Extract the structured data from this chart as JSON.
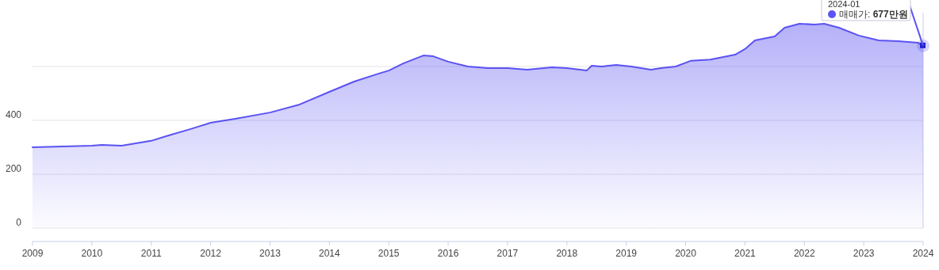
{
  "chart_data": {
    "type": "area",
    "x": [
      "2009-01",
      "2009-07",
      "2010-01",
      "2010-03",
      "2010-07",
      "2011-01",
      "2011-04",
      "2011-09",
      "2012-01",
      "2012-06",
      "2013-01",
      "2013-07",
      "2014-01",
      "2014-06",
      "2014-11",
      "2015-01",
      "2015-04",
      "2015-08",
      "2015-10",
      "2016-01",
      "2016-05",
      "2016-09",
      "2017-01",
      "2017-05",
      "2017-10",
      "2018-01",
      "2018-05",
      "2018-06",
      "2018-08",
      "2018-11",
      "2019-02",
      "2019-06",
      "2019-08",
      "2019-11",
      "2020-02",
      "2020-06",
      "2020-11",
      "2021-01",
      "2021-03",
      "2021-07",
      "2021-09",
      "2021-12",
      "2022-03",
      "2022-05",
      "2022-08",
      "2022-12",
      "2023-04",
      "2023-08",
      "2023-12",
      "2024-01"
    ],
    "series": [
      {
        "color": "#5b52f2",
        "values": [
          300,
          303,
          306,
          309,
          306,
          324,
          341,
          368,
          391,
          406,
          429,
          459,
          506,
          544,
          574,
          585,
          612,
          641,
          638,
          618,
          600,
          594,
          594,
          588,
          597,
          594,
          585,
          603,
          600,
          606,
          600,
          588,
          594,
          600,
          621,
          626,
          644,
          665,
          697,
          712,
          744,
          759,
          756,
          759,
          744,
          715,
          697,
          694,
          688,
          677
        ]
      }
    ],
    "xlim": [
      "2009-01",
      "2024-01"
    ],
    "xticks": [
      "2009",
      "2010",
      "2011",
      "2012",
      "2013",
      "2014",
      "2015",
      "2016",
      "2017",
      "2018",
      "2019",
      "2020",
      "2021",
      "2022",
      "2023",
      "2024"
    ],
    "ylim": [
      0,
      800
    ],
    "yticks": [
      0,
      200,
      400,
      {
        "value": 600,
        "label": null
      }
    ],
    "grid": "y",
    "annotations": [
      "2024-01",
      {
        "text": "매매가: 677만원",
        "x": "2024-01",
        "y": 677
      }
    ]
  }
}
